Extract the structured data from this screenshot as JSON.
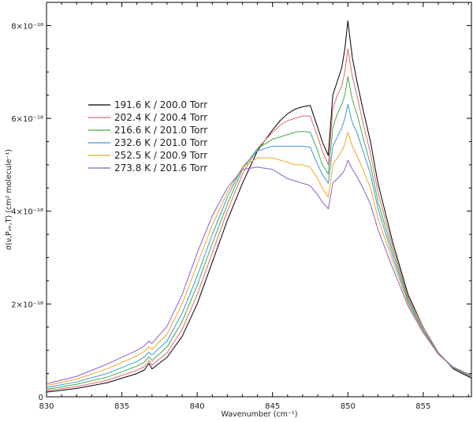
{
  "chart_data": {
    "type": "line",
    "xlabel": "Wavenumber (cm⁻¹)",
    "ylabel": "σ(ν,Pₐᵢᵣ,T) (cm² molecule⁻¹)",
    "xlim": [
      830,
      858.2
    ],
    "ylim": [
      0,
      8.5e-18
    ],
    "x_ticks": [
      830,
      835,
      840,
      845,
      850,
      855
    ],
    "x_tick_labels": [
      "830",
      "835",
      "840",
      "845",
      "850",
      "855"
    ],
    "y_ticks": [
      0,
      2e-18,
      4e-18,
      6e-18,
      8e-18
    ],
    "y_tick_labels": [
      "0",
      "2×10⁻¹⁸",
      "4×10⁻¹⁸",
      "6×10⁻¹⁸",
      "8×10⁻¹⁸"
    ],
    "legend_position": "upper-left",
    "grid": false,
    "x": [
      830,
      832,
      834,
      836,
      836.5,
      836.8,
      837,
      838,
      839,
      840,
      841,
      842,
      843,
      844,
      845,
      845.5,
      846,
      846.5,
      847,
      847.5,
      848,
      848.3,
      848.7,
      849,
      849.3,
      849.6,
      849.8,
      850,
      850.3,
      850.6,
      851,
      851.5,
      852,
      853,
      854,
      855,
      856,
      857,
      858.2
    ],
    "series": [
      {
        "name": "191.6 K / 200.0 Torr",
        "color": "#000000",
        "values": [
          0.1,
          0.18,
          0.3,
          0.5,
          0.58,
          0.72,
          0.6,
          0.85,
          1.3,
          2.0,
          2.9,
          3.8,
          4.6,
          5.3,
          5.75,
          5.95,
          6.1,
          6.2,
          6.25,
          6.28,
          5.8,
          5.5,
          5.2,
          6.5,
          6.8,
          7.1,
          7.5,
          8.1,
          7.3,
          6.8,
          6.2,
          5.5,
          4.6,
          3.3,
          2.2,
          1.5,
          0.95,
          0.6,
          0.4
        ]
      },
      {
        "name": "202.4 K / 200.4 Torr",
        "color": "#e8636f",
        "values": [
          0.13,
          0.22,
          0.35,
          0.57,
          0.65,
          0.78,
          0.68,
          0.95,
          1.45,
          2.2,
          3.1,
          4.0,
          4.8,
          5.35,
          5.7,
          5.85,
          5.95,
          6.0,
          6.05,
          6.05,
          5.6,
          5.3,
          5.0,
          6.2,
          6.5,
          6.7,
          7.0,
          7.5,
          6.9,
          6.5,
          5.9,
          5.25,
          4.4,
          3.2,
          2.15,
          1.5,
          0.95,
          0.62,
          0.42
        ]
      },
      {
        "name": "216.6 K / 201.0 Torr",
        "color": "#3fae49",
        "values": [
          0.16,
          0.27,
          0.42,
          0.66,
          0.75,
          0.86,
          0.78,
          1.07,
          1.62,
          2.4,
          3.3,
          4.15,
          4.9,
          5.35,
          5.55,
          5.6,
          5.65,
          5.7,
          5.72,
          5.7,
          5.3,
          5.0,
          4.8,
          5.8,
          6.1,
          6.3,
          6.5,
          6.9,
          6.4,
          6.1,
          5.6,
          5.0,
          4.2,
          3.1,
          2.1,
          1.45,
          0.93,
          0.62,
          0.43
        ]
      },
      {
        "name": "232.6 K / 201.0 Torr",
        "color": "#3a98d4",
        "values": [
          0.2,
          0.32,
          0.5,
          0.76,
          0.86,
          0.96,
          0.9,
          1.2,
          1.8,
          2.6,
          3.5,
          4.3,
          4.95,
          5.3,
          5.4,
          5.4,
          5.4,
          5.4,
          5.4,
          5.38,
          5.0,
          4.8,
          4.6,
          5.4,
          5.6,
          5.8,
          6.0,
          6.3,
          5.9,
          5.7,
          5.3,
          4.8,
          4.05,
          3.0,
          2.05,
          1.42,
          0.92,
          0.62,
          0.44
        ]
      },
      {
        "name": "252.5 K / 200.9 Torr",
        "color": "#f5a623",
        "values": [
          0.24,
          0.38,
          0.6,
          0.88,
          0.98,
          1.08,
          1.02,
          1.35,
          2.0,
          2.85,
          3.7,
          4.4,
          4.95,
          5.15,
          5.15,
          5.1,
          5.05,
          5.0,
          5.0,
          4.95,
          4.7,
          4.5,
          4.3,
          5.0,
          5.15,
          5.3,
          5.45,
          5.7,
          5.4,
          5.2,
          4.9,
          4.5,
          3.85,
          2.9,
          2.0,
          1.4,
          0.92,
          0.63,
          0.45
        ]
      },
      {
        "name": "273.8 K / 201.6 Torr",
        "color": "#8b5fc7",
        "values": [
          0.28,
          0.44,
          0.7,
          1.0,
          1.1,
          1.2,
          1.15,
          1.52,
          2.2,
          3.1,
          3.9,
          4.5,
          4.9,
          4.95,
          4.9,
          4.8,
          4.7,
          4.65,
          4.6,
          4.55,
          4.35,
          4.2,
          4.05,
          4.6,
          4.7,
          4.8,
          4.9,
          5.1,
          4.9,
          4.75,
          4.5,
          4.15,
          3.6,
          2.75,
          1.95,
          1.38,
          0.92,
          0.64,
          0.46
        ]
      }
    ]
  }
}
